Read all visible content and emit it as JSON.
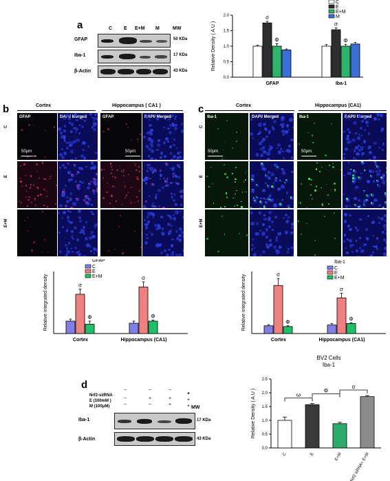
{
  "panel_a": {
    "label": "a",
    "blot": {
      "lanes": [
        "C",
        "E",
        "E+M",
        "M"
      ],
      "mw_header": "MW",
      "rows": [
        {
          "protein": "GFAP",
          "mw": "50 KDa"
        },
        {
          "protein": "Iba-1",
          "mw": "17 KDa"
        },
        {
          "protein": "β-Actin",
          "mw": "43 KDa"
        }
      ]
    }
  },
  "panel_b": {
    "label": "b",
    "headers": [
      "Cortex",
      "Hippocampus ( CA1 )"
    ],
    "tile_labels": [
      "GFAP",
      "DAPI/ Merged",
      "GFAP",
      "DAPI/ Merged"
    ],
    "row_labels": [
      "C",
      "E",
      "E+M"
    ],
    "scale_bar": "50μm"
  },
  "panel_c": {
    "label": "c",
    "headers": [
      "Cortex",
      "Hippocampus (CA1)"
    ],
    "tile_labels": [
      "Iba-1",
      "DAPI/ Merged",
      "Iba-1",
      "DAPI/ Merged"
    ],
    "row_labels": [
      "C",
      "E",
      "E+M"
    ],
    "scale_bar": "50μm"
  },
  "panel_d": {
    "label": "d",
    "blot": {
      "conditions": [
        {
          "name": "Nrf2-si/RNA",
          "signs": [
            "−",
            "−",
            "−",
            "+"
          ]
        },
        {
          "name": "E (100mM )",
          "signs": [
            "−",
            "+",
            "+",
            "+"
          ]
        },
        {
          "name": "M (100μM)",
          "signs": [
            "−",
            "−",
            "+",
            "+"
          ]
        }
      ],
      "mw_header": "MW",
      "rows": [
        {
          "protein": "Iba-1",
          "mw": "17 KDa"
        },
        {
          "protein": "β-Actin",
          "mw": "43 KDa"
        }
      ]
    }
  },
  "colors": {
    "C_a": "#ffffff",
    "E_a": "#2e2e2e",
    "EM_a": "#2db36a",
    "M_a": "#3c6fd6",
    "C_b": "#7f7fe6",
    "E_b": "#ef8080",
    "EM_b": "#1fbf6a",
    "d_C": "#ffffff",
    "d_E": "#3a3a3a",
    "d_EM": "#2eaa6a",
    "d_S": "#8c8c8c"
  },
  "chart_data": [
    {
      "id": "a",
      "type": "bar",
      "title": "",
      "xlabel": "",
      "ylabel": "Relative Density ( A.U )",
      "ylim": [
        0,
        2.0
      ],
      "yticks": [
        "0.0",
        "0.5",
        "1.0",
        "1.5",
        "2.0"
      ],
      "legend": {
        "placement": "top-right",
        "entries": [
          "C",
          "E",
          "E+M",
          "M"
        ]
      },
      "categories": [
        "GFAP",
        "Iba-1"
      ],
      "series": [
        {
          "name": "C",
          "values": [
            1.0,
            1.0
          ],
          "errors": [
            0.03,
            0.05
          ]
        },
        {
          "name": "E",
          "values": [
            1.75,
            1.53
          ],
          "errors": [
            0.05,
            0.06
          ]
        },
        {
          "name": "E+M",
          "values": [
            1.0,
            1.0
          ],
          "errors": [
            0.08,
            0.06
          ]
        },
        {
          "name": "M",
          "values": [
            0.88,
            1.07
          ],
          "errors": [
            0.03,
            0.05
          ]
        }
      ],
      "annotations": [
        {
          "category": "GFAP",
          "series": "E",
          "text": "σ"
        },
        {
          "category": "GFAP",
          "series": "E+M",
          "text": "Φ"
        },
        {
          "category": "Iba-1",
          "series": "E",
          "text": "σ"
        },
        {
          "category": "Iba-1",
          "series": "E+M",
          "text": "Φ"
        }
      ]
    },
    {
      "id": "b",
      "type": "bar",
      "title": "",
      "xlabel": "",
      "ylabel": "Relative integrated density",
      "ylim": [
        0,
        6
      ],
      "legend": {
        "placement": "top-left",
        "title": "GFAP",
        "entries": [
          "C",
          "E",
          "E+M"
        ]
      },
      "categories": [
        "Cortex",
        "Hippocampus (CA1)"
      ],
      "series": [
        {
          "name": "C",
          "values": [
            1.2,
            1.0
          ],
          "errors": [
            0.2,
            0.2
          ]
        },
        {
          "name": "E",
          "values": [
            3.8,
            4.5
          ],
          "errors": [
            0.5,
            0.5
          ]
        },
        {
          "name": "E+M",
          "values": [
            0.9,
            1.2
          ],
          "errors": [
            0.3,
            0.1
          ]
        }
      ],
      "annotations": [
        {
          "category": "Cortex",
          "series": "E",
          "text": "σ"
        },
        {
          "category": "Cortex",
          "series": "E+M",
          "text": "Φ"
        },
        {
          "category": "Hippocampus (CA1)",
          "series": "E",
          "text": "σ"
        },
        {
          "category": "Hippocampus (CA1)",
          "series": "E+M",
          "text": "Φ"
        }
      ]
    },
    {
      "id": "c",
      "type": "bar",
      "title": "",
      "xlabel": "",
      "ylabel": "Relative integrated density",
      "ylim": [
        0,
        8
      ],
      "legend": {
        "placement": "top-right",
        "title": "Iba-1",
        "entries": [
          "C",
          "E",
          "E+M"
        ]
      },
      "categories": [
        "Cortex",
        "Hippocampus (CA1)"
      ],
      "series": [
        {
          "name": "C",
          "values": [
            1.0,
            1.1
          ],
          "errors": [
            0.15,
            0.2
          ]
        },
        {
          "name": "E",
          "values": [
            6.2,
            4.6
          ],
          "errors": [
            0.9,
            0.6
          ]
        },
        {
          "name": "E+M",
          "values": [
            0.9,
            1.3
          ],
          "errors": [
            0.1,
            0.1
          ]
        }
      ],
      "annotations": [
        {
          "category": "Cortex",
          "series": "E",
          "text": "σ"
        },
        {
          "category": "Cortex",
          "series": "E+M",
          "text": "Φ"
        },
        {
          "category": "Hippocampus (CA1)",
          "series": "E",
          "text": "σ"
        },
        {
          "category": "Hippocampus (CA1)",
          "series": "E+M",
          "text": "Φ"
        }
      ]
    },
    {
      "id": "d",
      "type": "bar",
      "title": "BV2 Cells",
      "subtitle": "Iba-1",
      "xlabel": "",
      "ylabel": "Relative Density ( A.U )",
      "ylim": [
        0,
        2.5
      ],
      "yticks": [
        "0.0",
        "0.5",
        "1.0",
        "1.5",
        "2.0",
        "2.5"
      ],
      "categories": [
        "C",
        "E",
        "E+M",
        "Nrf2 siRNA+ E+M"
      ],
      "values": [
        1.0,
        1.57,
        0.88,
        1.86
      ],
      "errors": [
        0.12,
        0.04,
        0.05,
        0.04
      ],
      "brackets": [
        {
          "from": 0,
          "to": 1,
          "text": "ω"
        },
        {
          "from": 1,
          "to": 2,
          "text": "Φ"
        },
        {
          "from": 2,
          "to": 3,
          "text": "σ"
        }
      ]
    }
  ]
}
